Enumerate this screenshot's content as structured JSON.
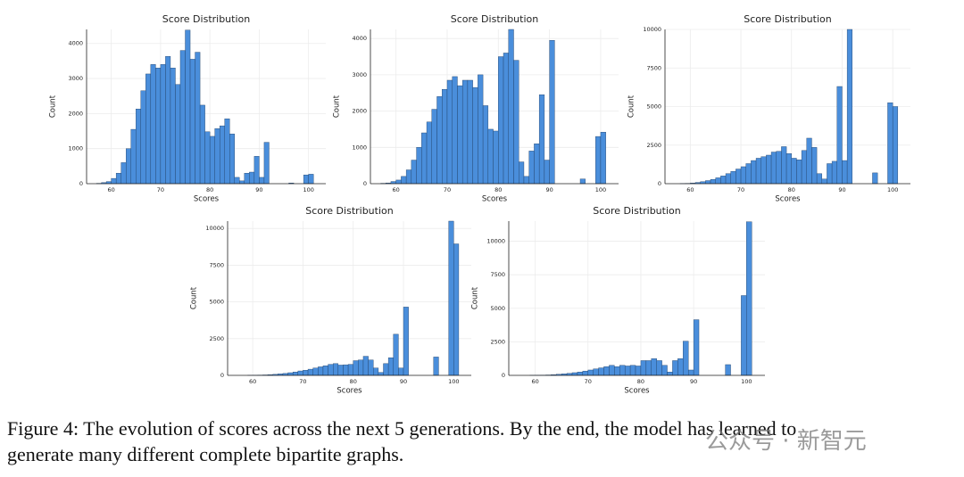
{
  "chart_data": [
    {
      "type": "histogram",
      "title": "Score Distribution",
      "xlabel": "Scores",
      "ylabel": "Count",
      "color": "#4a8edb",
      "grid": true,
      "bins": [
        57,
        58,
        59,
        60,
        61,
        62,
        63,
        64,
        65,
        66,
        67,
        68,
        69,
        70,
        71,
        72,
        73,
        74,
        75,
        76,
        77,
        78,
        79,
        80,
        81,
        82,
        83,
        84,
        85,
        86,
        87,
        88,
        89,
        90,
        91,
        92,
        93,
        94,
        95,
        96,
        97,
        98,
        99,
        100,
        101
      ],
      "counts": [
        10,
        30,
        60,
        150,
        300,
        600,
        1000,
        1550,
        2130,
        2650,
        3130,
        3400,
        3300,
        3400,
        3630,
        3300,
        2830,
        3800,
        4380,
        3550,
        3750,
        2240,
        1480,
        1350,
        1570,
        1650,
        1850,
        1420,
        180,
        80,
        300,
        330,
        780,
        180,
        1180,
        0,
        0,
        0,
        0,
        20,
        0,
        0,
        250,
        270
      ],
      "xlim": [
        55,
        103.5
      ],
      "xticks": [
        60,
        70,
        80,
        90,
        100
      ],
      "ylim": [
        0,
        4400
      ],
      "yticks": [
        0,
        1000,
        2000,
        3000,
        4000
      ]
    },
    {
      "type": "histogram",
      "title": "Score Distribution",
      "xlabel": "Scores",
      "ylabel": "Count",
      "color": "#4a8edb",
      "grid": true,
      "bins": [
        57,
        58,
        59,
        60,
        61,
        62,
        63,
        64,
        65,
        66,
        67,
        68,
        69,
        70,
        71,
        72,
        73,
        74,
        75,
        76,
        77,
        78,
        79,
        80,
        81,
        82,
        83,
        84,
        85,
        86,
        87,
        88,
        89,
        90,
        91,
        92,
        93,
        94,
        95,
        96,
        97,
        98,
        99,
        100,
        101
      ],
      "counts": [
        10,
        20,
        60,
        100,
        200,
        380,
        650,
        1000,
        1400,
        1700,
        2050,
        2400,
        2600,
        2850,
        2950,
        2700,
        2850,
        2850,
        2650,
        3000,
        2150,
        1500,
        1450,
        3500,
        3600,
        4250,
        3400,
        600,
        200,
        900,
        1100,
        2450,
        650,
        3950,
        0,
        0,
        0,
        0,
        0,
        130,
        0,
        0,
        1300,
        1420
      ],
      "xlim": [
        55,
        103.5
      ],
      "xticks": [
        60,
        70,
        80,
        90,
        100
      ],
      "ylim": [
        0,
        4250
      ],
      "yticks": [
        0,
        1000,
        2000,
        3000,
        4000
      ]
    },
    {
      "type": "histogram",
      "title": "Score Distribution",
      "xlabel": "Scores",
      "ylabel": "Count",
      "color": "#4a8edb",
      "grid": true,
      "bins": [
        57,
        58,
        59,
        60,
        61,
        62,
        63,
        64,
        65,
        66,
        67,
        68,
        69,
        70,
        71,
        72,
        73,
        74,
        75,
        76,
        77,
        78,
        79,
        80,
        81,
        82,
        83,
        84,
        85,
        86,
        87,
        88,
        89,
        90,
        91,
        92,
        93,
        94,
        95,
        96,
        97,
        98,
        99,
        100,
        101
      ],
      "counts": [
        0,
        10,
        20,
        40,
        80,
        130,
        200,
        280,
        380,
        500,
        650,
        800,
        950,
        1100,
        1300,
        1500,
        1650,
        1750,
        1850,
        2050,
        2100,
        2400,
        1950,
        1650,
        1550,
        2150,
        2950,
        2350,
        650,
        300,
        1300,
        1450,
        6300,
        1500,
        10000,
        0,
        0,
        0,
        0,
        700,
        0,
        0,
        5250,
        5000
      ],
      "xlim": [
        55,
        103.5
      ],
      "xticks": [
        60,
        70,
        80,
        90,
        100
      ],
      "ylim": [
        0,
        10000
      ],
      "yticks": [
        0,
        2500,
        5000,
        7500,
        10000
      ]
    },
    {
      "type": "histogram",
      "title": "Score Distribution",
      "xlabel": "Scores",
      "ylabel": "Count",
      "color": "#4a8edb",
      "grid": true,
      "bins": [
        57,
        58,
        59,
        60,
        61,
        62,
        63,
        64,
        65,
        66,
        67,
        68,
        69,
        70,
        71,
        72,
        73,
        74,
        75,
        76,
        77,
        78,
        79,
        80,
        81,
        82,
        83,
        84,
        85,
        86,
        87,
        88,
        89,
        90,
        91,
        92,
        93,
        94,
        95,
        96,
        97,
        98,
        99,
        100,
        101
      ],
      "counts": [
        0,
        0,
        5,
        10,
        20,
        30,
        50,
        70,
        100,
        130,
        180,
        230,
        300,
        350,
        420,
        500,
        580,
        650,
        750,
        800,
        700,
        720,
        750,
        1000,
        1050,
        1300,
        1050,
        500,
        200,
        800,
        1200,
        2800,
        500,
        4650,
        0,
        0,
        0,
        0,
        0,
        1250,
        0,
        0,
        10500,
        8950
      ],
      "xlim": [
        55,
        103.5
      ],
      "xticks": [
        60,
        70,
        80,
        90,
        100
      ],
      "ylim": [
        0,
        10500
      ],
      "yticks": [
        0,
        2500,
        5000,
        7500,
        10000
      ]
    },
    {
      "type": "histogram",
      "title": "Score Distribution",
      "xlabel": "Scores",
      "ylabel": "Count",
      "color": "#4a8edb",
      "grid": true,
      "bins": [
        57,
        58,
        59,
        60,
        61,
        62,
        63,
        64,
        65,
        66,
        67,
        68,
        69,
        70,
        71,
        72,
        73,
        74,
        75,
        76,
        77,
        78,
        79,
        80,
        81,
        82,
        83,
        84,
        85,
        86,
        87,
        88,
        89,
        90,
        91,
        92,
        93,
        94,
        95,
        96,
        97,
        98,
        99,
        100,
        101
      ],
      "counts": [
        0,
        0,
        5,
        10,
        20,
        30,
        50,
        80,
        110,
        150,
        200,
        250,
        320,
        400,
        480,
        560,
        650,
        750,
        650,
        750,
        700,
        750,
        700,
        1100,
        1100,
        1250,
        1100,
        750,
        250,
        1100,
        1250,
        2550,
        400,
        4150,
        0,
        0,
        0,
        0,
        0,
        800,
        0,
        0,
        5950,
        11450
      ],
      "xlim": [
        55,
        103.5
      ],
      "xticks": [
        60,
        70,
        80,
        90,
        100
      ],
      "ylim": [
        0,
        11500
      ],
      "yticks": [
        0,
        2500,
        5000,
        7500,
        10000
      ]
    }
  ],
  "caption": [
    "Figure 4: The evolution of scores across the next 5 generations. By the end, the model has learned to",
    "generate many different complete bipartite graphs."
  ],
  "watermark": "公众号 · 新智元"
}
